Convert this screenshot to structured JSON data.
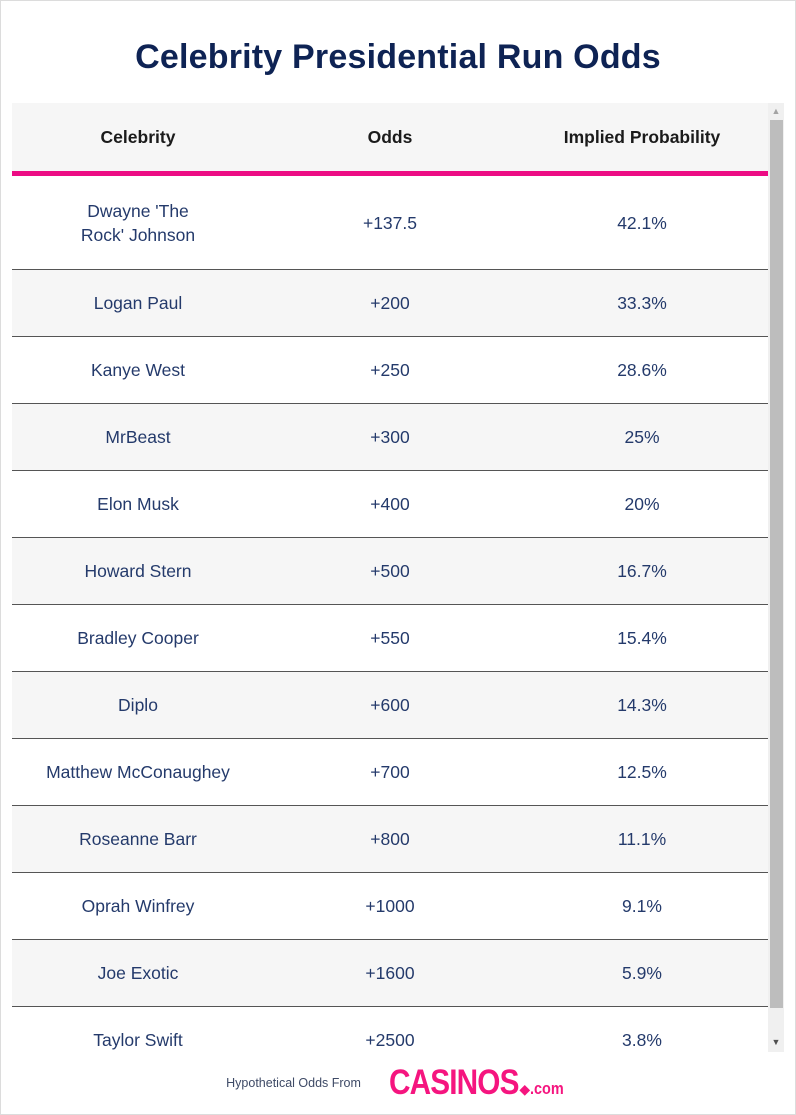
{
  "title": "Celebrity Presidential Run Odds",
  "table": {
    "columns": [
      "Celebrity",
      "Odds",
      "Implied Probability"
    ],
    "rows": [
      {
        "celebrity": "Dwayne 'The Rock' Johnson",
        "odds": "+137.5",
        "probability": "42.1%"
      },
      {
        "celebrity": "Logan Paul",
        "odds": "+200",
        "probability": "33.3%"
      },
      {
        "celebrity": "Kanye West",
        "odds": "+250",
        "probability": "28.6%"
      },
      {
        "celebrity": "MrBeast",
        "odds": "+300",
        "probability": "25%"
      },
      {
        "celebrity": "Elon Musk",
        "odds": "+400",
        "probability": "20%"
      },
      {
        "celebrity": "Howard Stern",
        "odds": "+500",
        "probability": "16.7%"
      },
      {
        "celebrity": "Bradley Cooper",
        "odds": "+550",
        "probability": "15.4%"
      },
      {
        "celebrity": "Diplo",
        "odds": "+600",
        "probability": "14.3%"
      },
      {
        "celebrity": "Matthew McConaughey",
        "odds": "+700",
        "probability": "12.5%"
      },
      {
        "celebrity": "Roseanne Barr",
        "odds": "+800",
        "probability": "11.1%"
      },
      {
        "celebrity": "Oprah Winfrey",
        "odds": "+1000",
        "probability": "9.1%"
      },
      {
        "celebrity": "Joe Exotic",
        "odds": "+1600",
        "probability": "5.9%"
      },
      {
        "celebrity": "Taylor Swift",
        "odds": "+2500",
        "probability": "3.8%"
      }
    ]
  },
  "scrollbar": {
    "up_icon": "▲",
    "down_icon": "▼"
  },
  "footer": {
    "text": "Hypothetical Odds From",
    "logo_main": "CASINOS",
    "logo_dot": "◆",
    "logo_tld": ".com"
  },
  "colors": {
    "title": "#0e2354",
    "accent": "#ec0c84",
    "cell_text": "#243a6b",
    "logo": "#f5157f"
  }
}
